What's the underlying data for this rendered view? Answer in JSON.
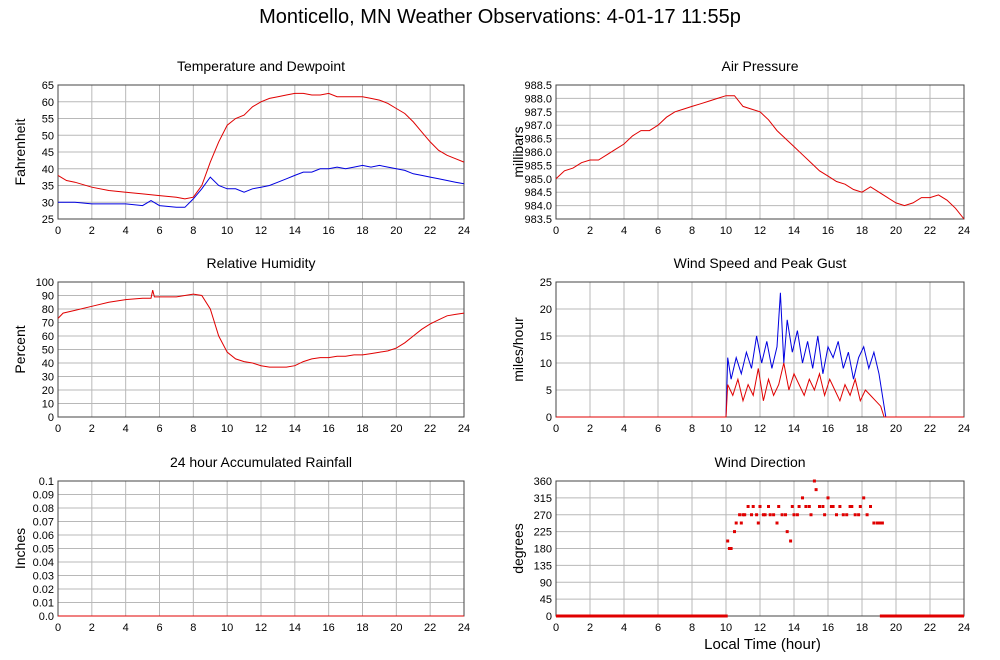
{
  "page": {
    "title": "Monticello, MN Weather Observations: 4-01-17 11:55p",
    "xlabel": "Local Time (hour)"
  },
  "chart_data": [
    {
      "id": "temp",
      "type": "line",
      "title": "Temperature and Dewpoint",
      "xlabel": "",
      "ylabel": "Fahrenheit",
      "xlim": [
        0,
        24
      ],
      "ylim": [
        25,
        65
      ],
      "xticks": [
        0,
        2,
        4,
        6,
        8,
        10,
        12,
        14,
        16,
        18,
        20,
        22,
        24
      ],
      "yticks": [
        25,
        30,
        35,
        40,
        45,
        50,
        55,
        60,
        65
      ],
      "grid": true,
      "series": [
        {
          "color": "#e00000",
          "x": [
            0,
            0.5,
            1,
            2,
            3,
            4,
            5,
            6,
            7,
            7.5,
            8,
            8.5,
            9,
            9.5,
            10,
            10.5,
            11,
            11.5,
            12,
            12.5,
            13,
            13.5,
            14,
            14.5,
            15,
            15.5,
            16,
            16.5,
            17,
            17.5,
            18,
            18.5,
            19,
            19.5,
            20,
            20.5,
            21,
            21.5,
            22,
            22.5,
            23,
            23.5,
            24
          ],
          "values": [
            38,
            36.5,
            36,
            34.5,
            33.5,
            33,
            32.5,
            32,
            31.5,
            31,
            31.5,
            35,
            42,
            48,
            53,
            55,
            56,
            58.5,
            60,
            61,
            61.5,
            62,
            62.5,
            62.5,
            62,
            62,
            62.5,
            61.5,
            61.5,
            61.5,
            61.5,
            61,
            60.5,
            59.5,
            58,
            56.5,
            54,
            51,
            48,
            45.5,
            44,
            43,
            42
          ]
        },
        {
          "color": "#0000e0",
          "x": [
            0,
            1,
            2,
            3,
            4,
            5,
            5.5,
            6,
            7,
            7.5,
            8,
            8.5,
            9,
            9.5,
            10,
            10.5,
            11,
            11.5,
            12,
            12.5,
            13,
            13.5,
            14,
            14.5,
            15,
            15.5,
            16,
            16.5,
            17,
            17.5,
            18,
            18.5,
            19,
            19.5,
            20,
            20.5,
            21,
            21.5,
            22,
            22.5,
            23,
            23.5,
            24
          ],
          "values": [
            30,
            30,
            29.5,
            29.5,
            29.5,
            29,
            30.5,
            29,
            28.5,
            28.5,
            31,
            34,
            37.5,
            35,
            34,
            34,
            33,
            34,
            34.5,
            35,
            36,
            37,
            38,
            39,
            39,
            40,
            40,
            40.5,
            40,
            40.5,
            41,
            40.5,
            41,
            40.5,
            40,
            39.5,
            38.5,
            38,
            37.5,
            37,
            36.5,
            36,
            35.5
          ]
        }
      ]
    },
    {
      "id": "pressure",
      "type": "line",
      "title": "Air Pressure",
      "xlabel": "",
      "ylabel": "millibars",
      "xlim": [
        0,
        24
      ],
      "ylim": [
        983.5,
        988.5
      ],
      "xticks": [
        0,
        2,
        4,
        6,
        8,
        10,
        12,
        14,
        16,
        18,
        20,
        22,
        24
      ],
      "yticks": [
        983.5,
        984.0,
        984.5,
        985.0,
        985.5,
        986.0,
        986.5,
        987.0,
        987.5,
        988.0,
        988.5
      ],
      "ytick_labels": [
        "983.5",
        "984.0",
        "984.5",
        "985.0",
        "985.5",
        "986.0",
        "986.5",
        "987.0",
        "987.5",
        "988.0",
        "988.5"
      ],
      "grid": true,
      "series": [
        {
          "color": "#e00000",
          "x": [
            0,
            0.5,
            1,
            1.5,
            2,
            2.5,
            3,
            3.5,
            4,
            4.5,
            5,
            5.5,
            6,
            6.5,
            7,
            7.5,
            8,
            8.5,
            9,
            9.5,
            10,
            10.5,
            11,
            11.5,
            12,
            12.5,
            13,
            13.5,
            14,
            14.5,
            15,
            15.5,
            16,
            16.5,
            17,
            17.5,
            18,
            18.5,
            19,
            19.5,
            20,
            20.5,
            21,
            21.5,
            22,
            22.5,
            23,
            23.5,
            24
          ],
          "values": [
            985.0,
            985.3,
            985.4,
            985.6,
            985.7,
            985.7,
            985.9,
            986.1,
            986.3,
            986.6,
            986.8,
            986.8,
            987.0,
            987.3,
            987.5,
            987.6,
            987.7,
            987.8,
            987.9,
            988.0,
            988.1,
            988.1,
            987.7,
            987.6,
            987.5,
            987.2,
            986.8,
            986.5,
            986.2,
            985.9,
            985.6,
            985.3,
            985.1,
            984.9,
            984.8,
            984.6,
            984.5,
            984.7,
            984.5,
            984.3,
            984.1,
            984.0,
            984.1,
            984.3,
            984.3,
            984.4,
            984.2,
            983.9,
            983.5
          ]
        }
      ]
    },
    {
      "id": "humidity",
      "type": "line",
      "title": "Relative Humidity",
      "xlabel": "",
      "ylabel": "Percent",
      "xlim": [
        0,
        24
      ],
      "ylim": [
        0,
        100
      ],
      "xticks": [
        0,
        2,
        4,
        6,
        8,
        10,
        12,
        14,
        16,
        18,
        20,
        22,
        24
      ],
      "yticks": [
        0,
        10,
        20,
        30,
        40,
        50,
        60,
        70,
        80,
        90,
        100
      ],
      "grid": true,
      "series": [
        {
          "color": "#e00000",
          "x": [
            0,
            0.3,
            1,
            2,
            3,
            4,
            5,
            5.5,
            5.6,
            5.7,
            6,
            7,
            8,
            8.5,
            9,
            9.5,
            10,
            10.5,
            11,
            11.5,
            12,
            12.5,
            13,
            13.5,
            14,
            14.5,
            15,
            15.5,
            16,
            16.5,
            17,
            17.5,
            18,
            18.5,
            19,
            19.5,
            20,
            20.5,
            21,
            21.5,
            22,
            22.5,
            23,
            23.5,
            24
          ],
          "values": [
            73,
            77,
            79,
            82,
            85,
            87,
            88,
            88,
            94,
            89,
            89,
            89,
            91,
            90,
            80,
            60,
            48,
            43,
            41,
            40,
            38,
            37,
            37,
            37,
            38,
            41,
            43,
            44,
            44,
            45,
            45,
            46,
            46,
            47,
            48,
            49,
            51,
            55,
            60,
            65,
            69,
            72,
            75,
            76,
            77
          ]
        }
      ]
    },
    {
      "id": "wind",
      "type": "line",
      "title": "Wind Speed and Peak Gust",
      "xlabel": "",
      "ylabel": "miles/hour",
      "xlim": [
        0,
        24
      ],
      "ylim": [
        0,
        25
      ],
      "xticks": [
        0,
        2,
        4,
        6,
        8,
        10,
        12,
        14,
        16,
        18,
        20,
        22,
        24
      ],
      "yticks": [
        0,
        5,
        10,
        15,
        20,
        25
      ],
      "grid": true,
      "series": [
        {
          "color": "#0000e0",
          "x": [
            0,
            10,
            10.1,
            10.3,
            10.6,
            10.9,
            11.2,
            11.5,
            11.8,
            12.1,
            12.4,
            12.7,
            13.0,
            13.2,
            13.4,
            13.6,
            13.9,
            14.2,
            14.5,
            14.8,
            15.1,
            15.4,
            15.7,
            16.0,
            16.3,
            16.6,
            16.9,
            17.2,
            17.5,
            17.8,
            18.1,
            18.4,
            18.7,
            19.0,
            19.2,
            19.4,
            20,
            24
          ],
          "values": [
            0,
            0,
            11,
            7,
            11,
            8,
            12,
            9,
            15,
            10,
            14,
            9,
            13,
            23,
            10,
            18,
            12,
            16,
            10,
            14,
            9,
            15,
            8,
            13,
            11,
            14,
            9,
            12,
            7,
            11,
            13,
            9,
            12,
            8,
            4,
            0,
            0,
            0
          ]
        },
        {
          "color": "#e00000",
          "x": [
            0,
            10,
            10.1,
            10.4,
            10.7,
            11.0,
            11.3,
            11.6,
            11.9,
            12.2,
            12.5,
            12.8,
            13.1,
            13.4,
            13.7,
            14.0,
            14.3,
            14.6,
            14.9,
            15.2,
            15.5,
            15.8,
            16.1,
            16.4,
            16.7,
            17.0,
            17.3,
            17.6,
            17.9,
            18.2,
            18.5,
            18.8,
            19.1,
            19.3,
            20,
            24
          ],
          "values": [
            0,
            0,
            6,
            4,
            7,
            3,
            6,
            4,
            9,
            3,
            7,
            4,
            6,
            10,
            5,
            8,
            6,
            4,
            7,
            5,
            8,
            4,
            7,
            5,
            3,
            6,
            4,
            7,
            3,
            5,
            4,
            3,
            2,
            0,
            0,
            0
          ]
        }
      ]
    },
    {
      "id": "rain",
      "type": "line",
      "title": "24 hour Accumulated Rainfall",
      "xlabel": "",
      "ylabel": "Inches",
      "xlim": [
        0,
        24
      ],
      "ylim": [
        0,
        0.1
      ],
      "xticks": [
        0,
        2,
        4,
        6,
        8,
        10,
        12,
        14,
        16,
        18,
        20,
        22,
        24
      ],
      "yticks": [
        0,
        0.01,
        0.02,
        0.03,
        0.04,
        0.05,
        0.06,
        0.07,
        0.08,
        0.09,
        0.1
      ],
      "ytick_labels": [
        "0.0",
        "0.01",
        "0.02",
        "0.03",
        "0.04",
        "0.05",
        "0.06",
        "0.07",
        "0.08",
        "0.09",
        "0.1"
      ],
      "grid": true,
      "series": [
        {
          "color": "#e00000",
          "x": [
            0,
            24
          ],
          "values": [
            0,
            0
          ]
        }
      ]
    },
    {
      "id": "winddir",
      "type": "scatter",
      "title": "Wind Direction",
      "xlabel": "",
      "ylabel": "degrees",
      "xlim": [
        0,
        24
      ],
      "ylim": [
        0,
        360
      ],
      "xticks": [
        0,
        2,
        4,
        6,
        8,
        10,
        12,
        14,
        16,
        18,
        20,
        22,
        24
      ],
      "yticks": [
        0,
        45,
        90,
        135,
        180,
        225,
        270,
        315,
        360
      ],
      "grid": true,
      "series": [
        {
          "color": "#e00000",
          "x": [
            10.1,
            10.2,
            10.3,
            10.5,
            10.6,
            10.8,
            10.9,
            11.0,
            11.1,
            11.3,
            11.5,
            11.6,
            11.8,
            11.9,
            12.0,
            12.2,
            12.3,
            12.5,
            12.6,
            12.8,
            13.0,
            13.1,
            13.3,
            13.5,
            13.6,
            13.8,
            13.9,
            14.0,
            14.2,
            14.3,
            14.5,
            14.7,
            14.9,
            15.0,
            15.2,
            15.3,
            15.5,
            15.7,
            15.8,
            16.0,
            16.2,
            16.3,
            16.5,
            16.7,
            16.9,
            17.1,
            17.3,
            17.4,
            17.6,
            17.8,
            17.9,
            18.1,
            18.3,
            18.5,
            18.7,
            18.9,
            19.0,
            19.1,
            19.2
          ],
          "values": [
            200,
            180,
            180,
            225,
            248,
            270,
            248,
            270,
            270,
            292,
            270,
            292,
            270,
            248,
            292,
            270,
            270,
            292,
            270,
            270,
            248,
            292,
            270,
            270,
            225,
            200,
            292,
            270,
            270,
            292,
            315,
            292,
            292,
            270,
            360,
            337,
            292,
            292,
            270,
            315,
            292,
            292,
            270,
            292,
            270,
            270,
            292,
            292,
            270,
            270,
            292,
            315,
            270,
            292,
            248,
            248,
            248,
            248,
            248
          ]
        }
      ],
      "zero_run": [
        [
          0,
          10.1
        ],
        [
          19.05,
          24
        ]
      ]
    }
  ]
}
